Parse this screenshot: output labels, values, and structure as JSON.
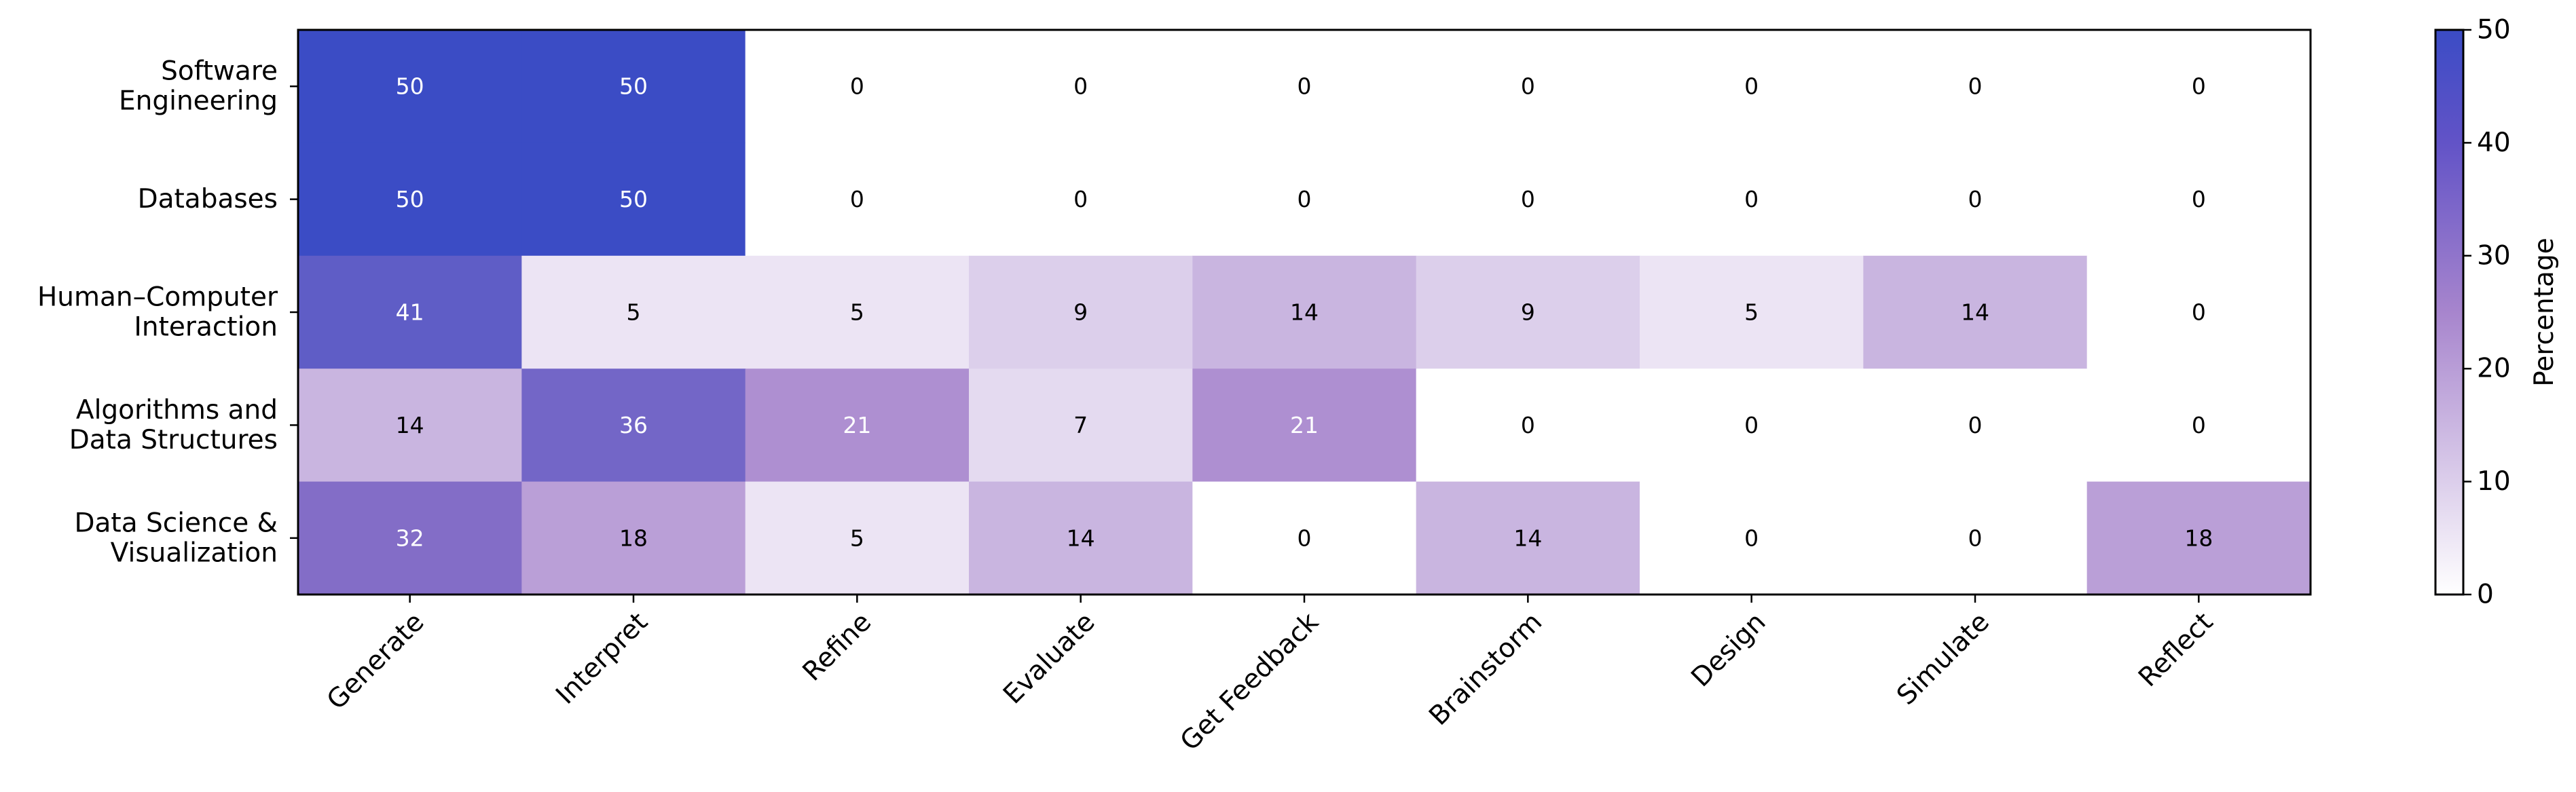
{
  "chart_data": {
    "type": "heatmap",
    "rows": [
      [
        "Software",
        "Engineering"
      ],
      [
        "Databases"
      ],
      [
        "Human–Computer",
        "Interaction"
      ],
      [
        "Algorithms and",
        "Data Structures"
      ],
      [
        "Data Science &",
        "Visualization"
      ]
    ],
    "columns": [
      "Generate",
      "Interpret",
      "Refine",
      "Evaluate",
      "Get Feedback",
      "Brainstorm",
      "Design",
      "Simulate",
      "Reflect"
    ],
    "values": [
      [
        50,
        50,
        0,
        0,
        0,
        0,
        0,
        0,
        0
      ],
      [
        50,
        50,
        0,
        0,
        0,
        0,
        0,
        0,
        0
      ],
      [
        41,
        5,
        5,
        9,
        14,
        9,
        5,
        14,
        0
      ],
      [
        14,
        36,
        21,
        7,
        21,
        0,
        0,
        0,
        0
      ],
      [
        32,
        18,
        5,
        14,
        0,
        14,
        0,
        0,
        18
      ]
    ],
    "colorbar": {
      "label": "Percentage",
      "range": [
        0,
        50
      ],
      "ticks": [
        "0",
        "10",
        "20",
        "30",
        "40",
        "50"
      ]
    },
    "colors": {
      "low": "#ffffff",
      "mid": "#9f7ac8",
      "high": "#3b4cc5",
      "light_text_threshold": 20,
      "text_dark": "#000000",
      "text_light": "#ffffff"
    }
  }
}
